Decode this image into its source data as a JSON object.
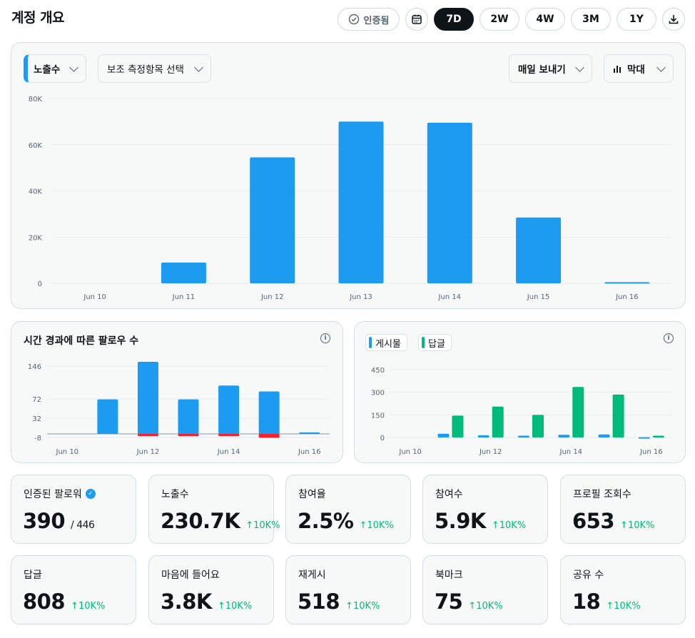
{
  "page": {
    "title": "계정 개요"
  },
  "toolbar": {
    "verified_label": "인증됨",
    "ranges": [
      "7D",
      "2W",
      "4W",
      "3M",
      "1Y"
    ],
    "active_range": "7D"
  },
  "main_card": {
    "primary_metric": "노출수",
    "secondary_metric": "보조 측정항목 선택",
    "export_label": "매일 보내기",
    "chart_type_label": "막대"
  },
  "follow_card": {
    "title": "시간 경과에 따른 팔로우 수"
  },
  "posts_card": {
    "legend": [
      "게시물",
      "답글"
    ]
  },
  "colors": {
    "blue": "#1d9bf0",
    "green": "#00ba7c",
    "red": "#f4212e"
  },
  "chart_data": [
    {
      "type": "bar",
      "categories": [
        "Jun 10",
        "Jun 11",
        "Jun 12",
        "Jun 13",
        "Jun 14",
        "Jun 15",
        "Jun 16"
      ],
      "values": [
        0,
        9000,
        54500,
        70000,
        69500,
        28500,
        500
      ],
      "yticks": [
        "0",
        "20K",
        "40K",
        "60K",
        "80K"
      ],
      "ylim": [
        0,
        80000
      ],
      "grid": true
    },
    {
      "type": "bar",
      "categories": [
        "Jun 10",
        "Jun 11",
        "Jun 12",
        "Jun 13",
        "Jun 14",
        "Jun 15",
        "Jun 16"
      ],
      "xticks": [
        "Jun 10",
        "Jun 12",
        "Jun 14",
        "Jun 16"
      ],
      "series": [
        {
          "values": [
            0,
            70,
            146,
            70,
            98,
            86,
            3
          ]
        },
        {
          "values": [
            0,
            0,
            -7,
            -4,
            -7,
            -13,
            0
          ]
        }
      ],
      "yticks": [
        "-8",
        "32",
        "72",
        "146"
      ],
      "ylim": [
        -15,
        150
      ],
      "grid": true
    },
    {
      "type": "bar",
      "categories": [
        "Jun 10",
        "Jun 11",
        "Jun 12",
        "Jun 13",
        "Jun 14",
        "Jun 15",
        "Jun 16"
      ],
      "xticks": [
        "Jun 10",
        "Jun 12",
        "Jun 14",
        "Jun 16"
      ],
      "series": [
        {
          "name": "게시물",
          "values": [
            0,
            25,
            15,
            12,
            18,
            20,
            2
          ]
        },
        {
          "name": "답글",
          "values": [
            0,
            145,
            205,
            150,
            335,
            285,
            12
          ]
        }
      ],
      "yticks": [
        "0",
        "150",
        "300",
        "450"
      ],
      "ylim": [
        0,
        460
      ],
      "grid": true
    }
  ],
  "stats": [
    {
      "label": "인증된 팔로워",
      "value": "390",
      "sub": "/ 446",
      "verified": true
    },
    {
      "label": "노출수",
      "value": "230.7K",
      "delta": "↑10K%"
    },
    {
      "label": "참여율",
      "value": "2.5%",
      "delta": "↑10K%"
    },
    {
      "label": "참여수",
      "value": "5.9K",
      "delta": "↑10K%"
    },
    {
      "label": "프로필 조회수",
      "value": "653",
      "delta": "↑10K%"
    },
    {
      "label": "답글",
      "value": "808",
      "delta": "↑10K%"
    },
    {
      "label": "마음에 들어요",
      "value": "3.8K",
      "delta": "↑10K%"
    },
    {
      "label": "재게시",
      "value": "518",
      "delta": "↑10K%"
    },
    {
      "label": "북마크",
      "value": "75",
      "delta": "↑10K%"
    },
    {
      "label": "공유 수",
      "value": "18",
      "delta": "↑10K%"
    }
  ]
}
